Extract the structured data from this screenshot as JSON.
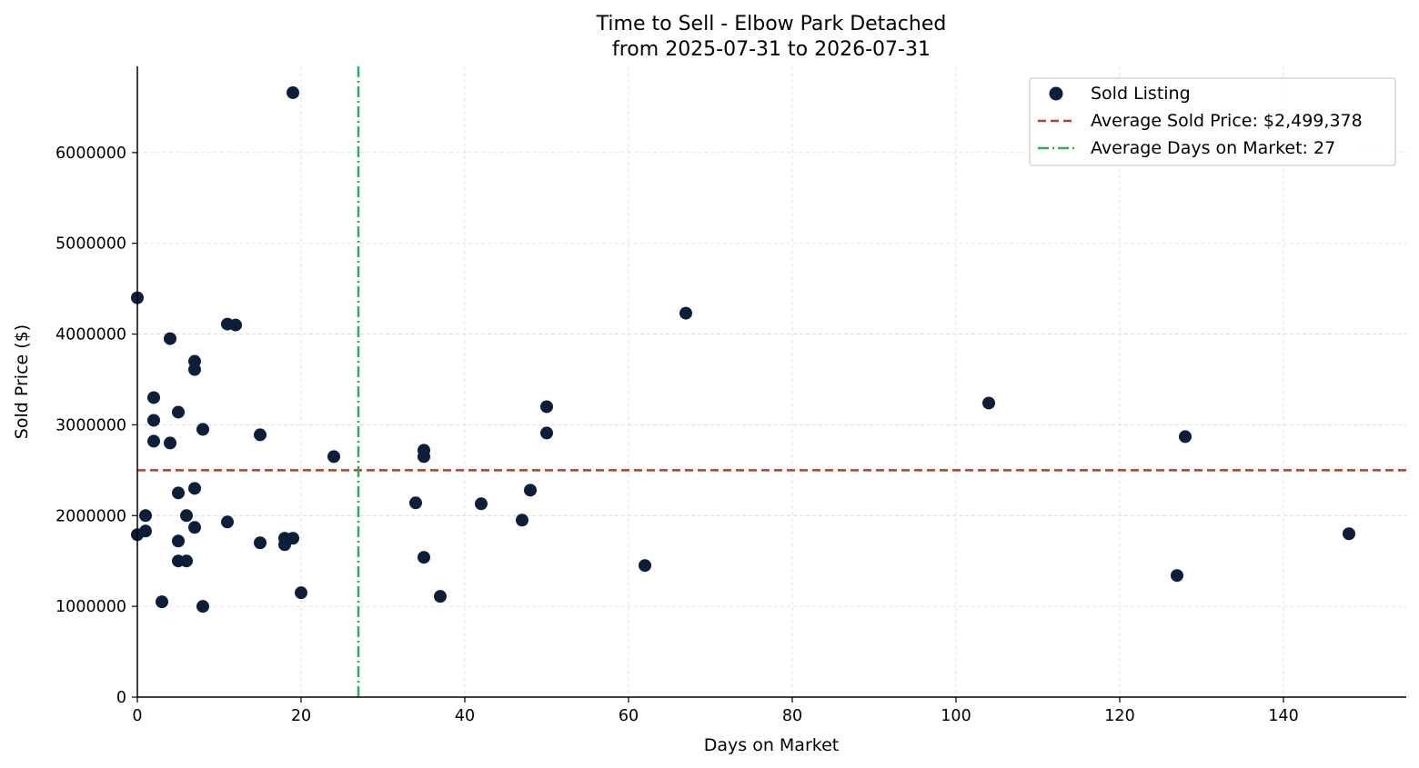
{
  "chart_data": {
    "type": "scatter",
    "title_line1": "Time to Sell - Elbow Park Detached",
    "title_line2": "from 2025-07-31 to 2026-07-31",
    "xlabel": "Days on Market",
    "ylabel": "Sold Price ($)",
    "xlim": [
      0,
      155
    ],
    "ylim": [
      0,
      6950000
    ],
    "xticks": [
      0,
      20,
      40,
      60,
      80,
      100,
      120,
      140
    ],
    "xtick_labels": [
      "0",
      "20",
      "40",
      "60",
      "80",
      "100",
      "120",
      "140"
    ],
    "yticks": [
      0,
      1000000,
      2000000,
      3000000,
      4000000,
      5000000,
      6000000
    ],
    "ytick_labels": [
      "0",
      "1000000",
      "2000000",
      "3000000",
      "4000000",
      "5000000",
      "6000000"
    ],
    "grid": true,
    "legend_position": "top-right",
    "colors": {
      "points": "#0b1f3a",
      "avg_price_line": "#c0392b",
      "avg_days_line": "#27ae60",
      "grid": "#d9d9d9"
    },
    "series": [
      {
        "name": "Sold Listing",
        "points": [
          [
            0,
            4400000
          ],
          [
            0,
            1790000
          ],
          [
            1,
            2000000
          ],
          [
            1,
            1830000
          ],
          [
            2,
            3300000
          ],
          [
            2,
            3050000
          ],
          [
            2,
            2820000
          ],
          [
            3,
            1050000
          ],
          [
            4,
            3950000
          ],
          [
            4,
            2800000
          ],
          [
            5,
            3140000
          ],
          [
            5,
            2250000
          ],
          [
            5,
            1720000
          ],
          [
            5,
            1500000
          ],
          [
            6,
            2000000
          ],
          [
            6,
            1500000
          ],
          [
            7,
            3700000
          ],
          [
            7,
            3610000
          ],
          [
            7,
            2300000
          ],
          [
            7,
            1870000
          ],
          [
            8,
            2950000
          ],
          [
            8,
            1000000
          ],
          [
            11,
            4110000
          ],
          [
            11,
            1930000
          ],
          [
            12,
            4100000
          ],
          [
            15,
            2890000
          ],
          [
            15,
            1700000
          ],
          [
            18,
            1750000
          ],
          [
            18,
            1680000
          ],
          [
            19,
            6660000
          ],
          [
            19,
            1750000
          ],
          [
            20,
            1150000
          ],
          [
            24,
            2650000
          ],
          [
            34,
            2140000
          ],
          [
            35,
            2720000
          ],
          [
            35,
            2650000
          ],
          [
            35,
            1540000
          ],
          [
            37,
            1110000
          ],
          [
            42,
            2130000
          ],
          [
            47,
            1950000
          ],
          [
            48,
            2280000
          ],
          [
            50,
            3200000
          ],
          [
            50,
            2910000
          ],
          [
            62,
            1450000
          ],
          [
            67,
            4230000
          ],
          [
            104,
            3240000
          ],
          [
            127,
            1340000
          ],
          [
            128,
            2870000
          ],
          [
            148,
            1800000
          ]
        ]
      }
    ],
    "average_sold_price": 2499378,
    "average_days_on_market": 27,
    "legend": [
      "Sold Listing",
      "Average Sold Price: $2,499,378",
      "Average Days on Market: 27"
    ]
  }
}
